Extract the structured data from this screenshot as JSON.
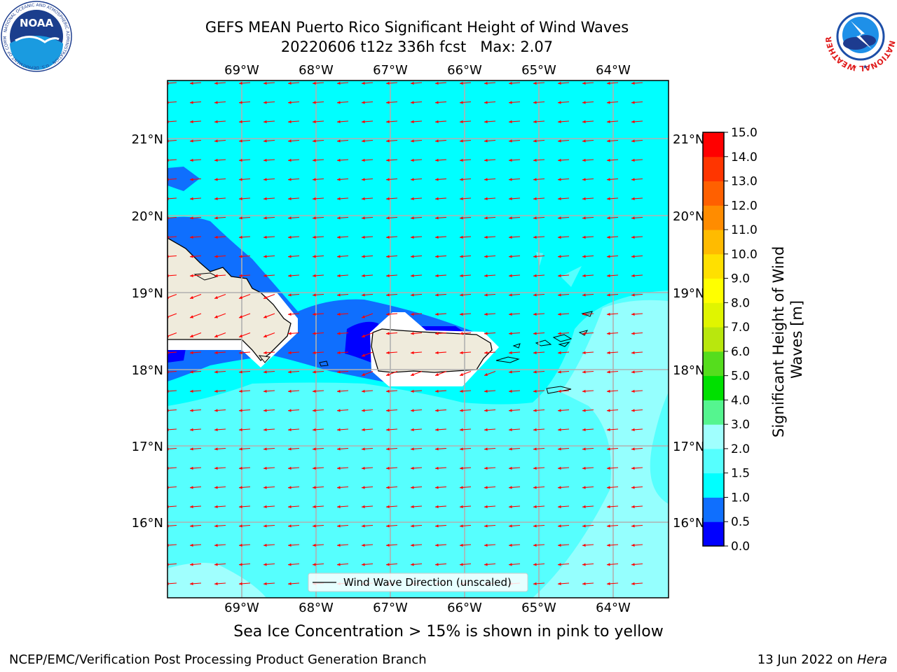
{
  "header": {
    "title_line1": "GEFS MEAN Puerto Rico Significant Height of Wind Waves",
    "title_line2": "20220606 t12z 336h fcst   Max: 2.07"
  },
  "logos": {
    "left": {
      "text": "NOAA",
      "ring_text": "NATIONAL OCEANIC AND ATMOSPHERIC ADMINISTRATION · U.S. DEPARTMENT OF COMMERCE"
    },
    "right": {
      "ring_text": "NATIONAL WEATHER SERVICE"
    }
  },
  "map": {
    "lon_labels": [
      "69°W",
      "68°W",
      "67°W",
      "66°W",
      "65°W",
      "64°W"
    ],
    "lat_labels": [
      "21°N",
      "20°N",
      "19°N",
      "18°N",
      "17°N",
      "16°N"
    ],
    "legend_label": "Wind Wave Direction (unscaled)",
    "arrow_color": "#ff0000",
    "land_color": "#efebdc"
  },
  "colorbar": {
    "label": "Significant Height of Wind Waves [m]",
    "ticks": [
      "0.0",
      "0.5",
      "1.0",
      "1.5",
      "2.0",
      "3.0",
      "4.0",
      "5.0",
      "6.0",
      "7.0",
      "8.0",
      "9.0",
      "10.0",
      "11.0",
      "12.0",
      "13.0",
      "14.0",
      "15.0"
    ],
    "colors": [
      "#0000ff",
      "#0f6ffe",
      "#00ffff",
      "#56fffe",
      "#a0fffe",
      "#55f58f",
      "#00e000",
      "#55dd1d",
      "#b9e70d",
      "#e0f500",
      "#ffff00",
      "#ffe000",
      "#ffbb00",
      "#ff8c00",
      "#ff6000",
      "#ff3500",
      "#ff0000"
    ]
  },
  "note": "Sea Ice Concentration > 15% is shown in pink to yellow",
  "footer": {
    "left": "NCEP/EMC/Verification Post Processing Product Generation Branch",
    "right_prefix": "13 Jun 2022 on ",
    "right_host": "Hera"
  }
}
